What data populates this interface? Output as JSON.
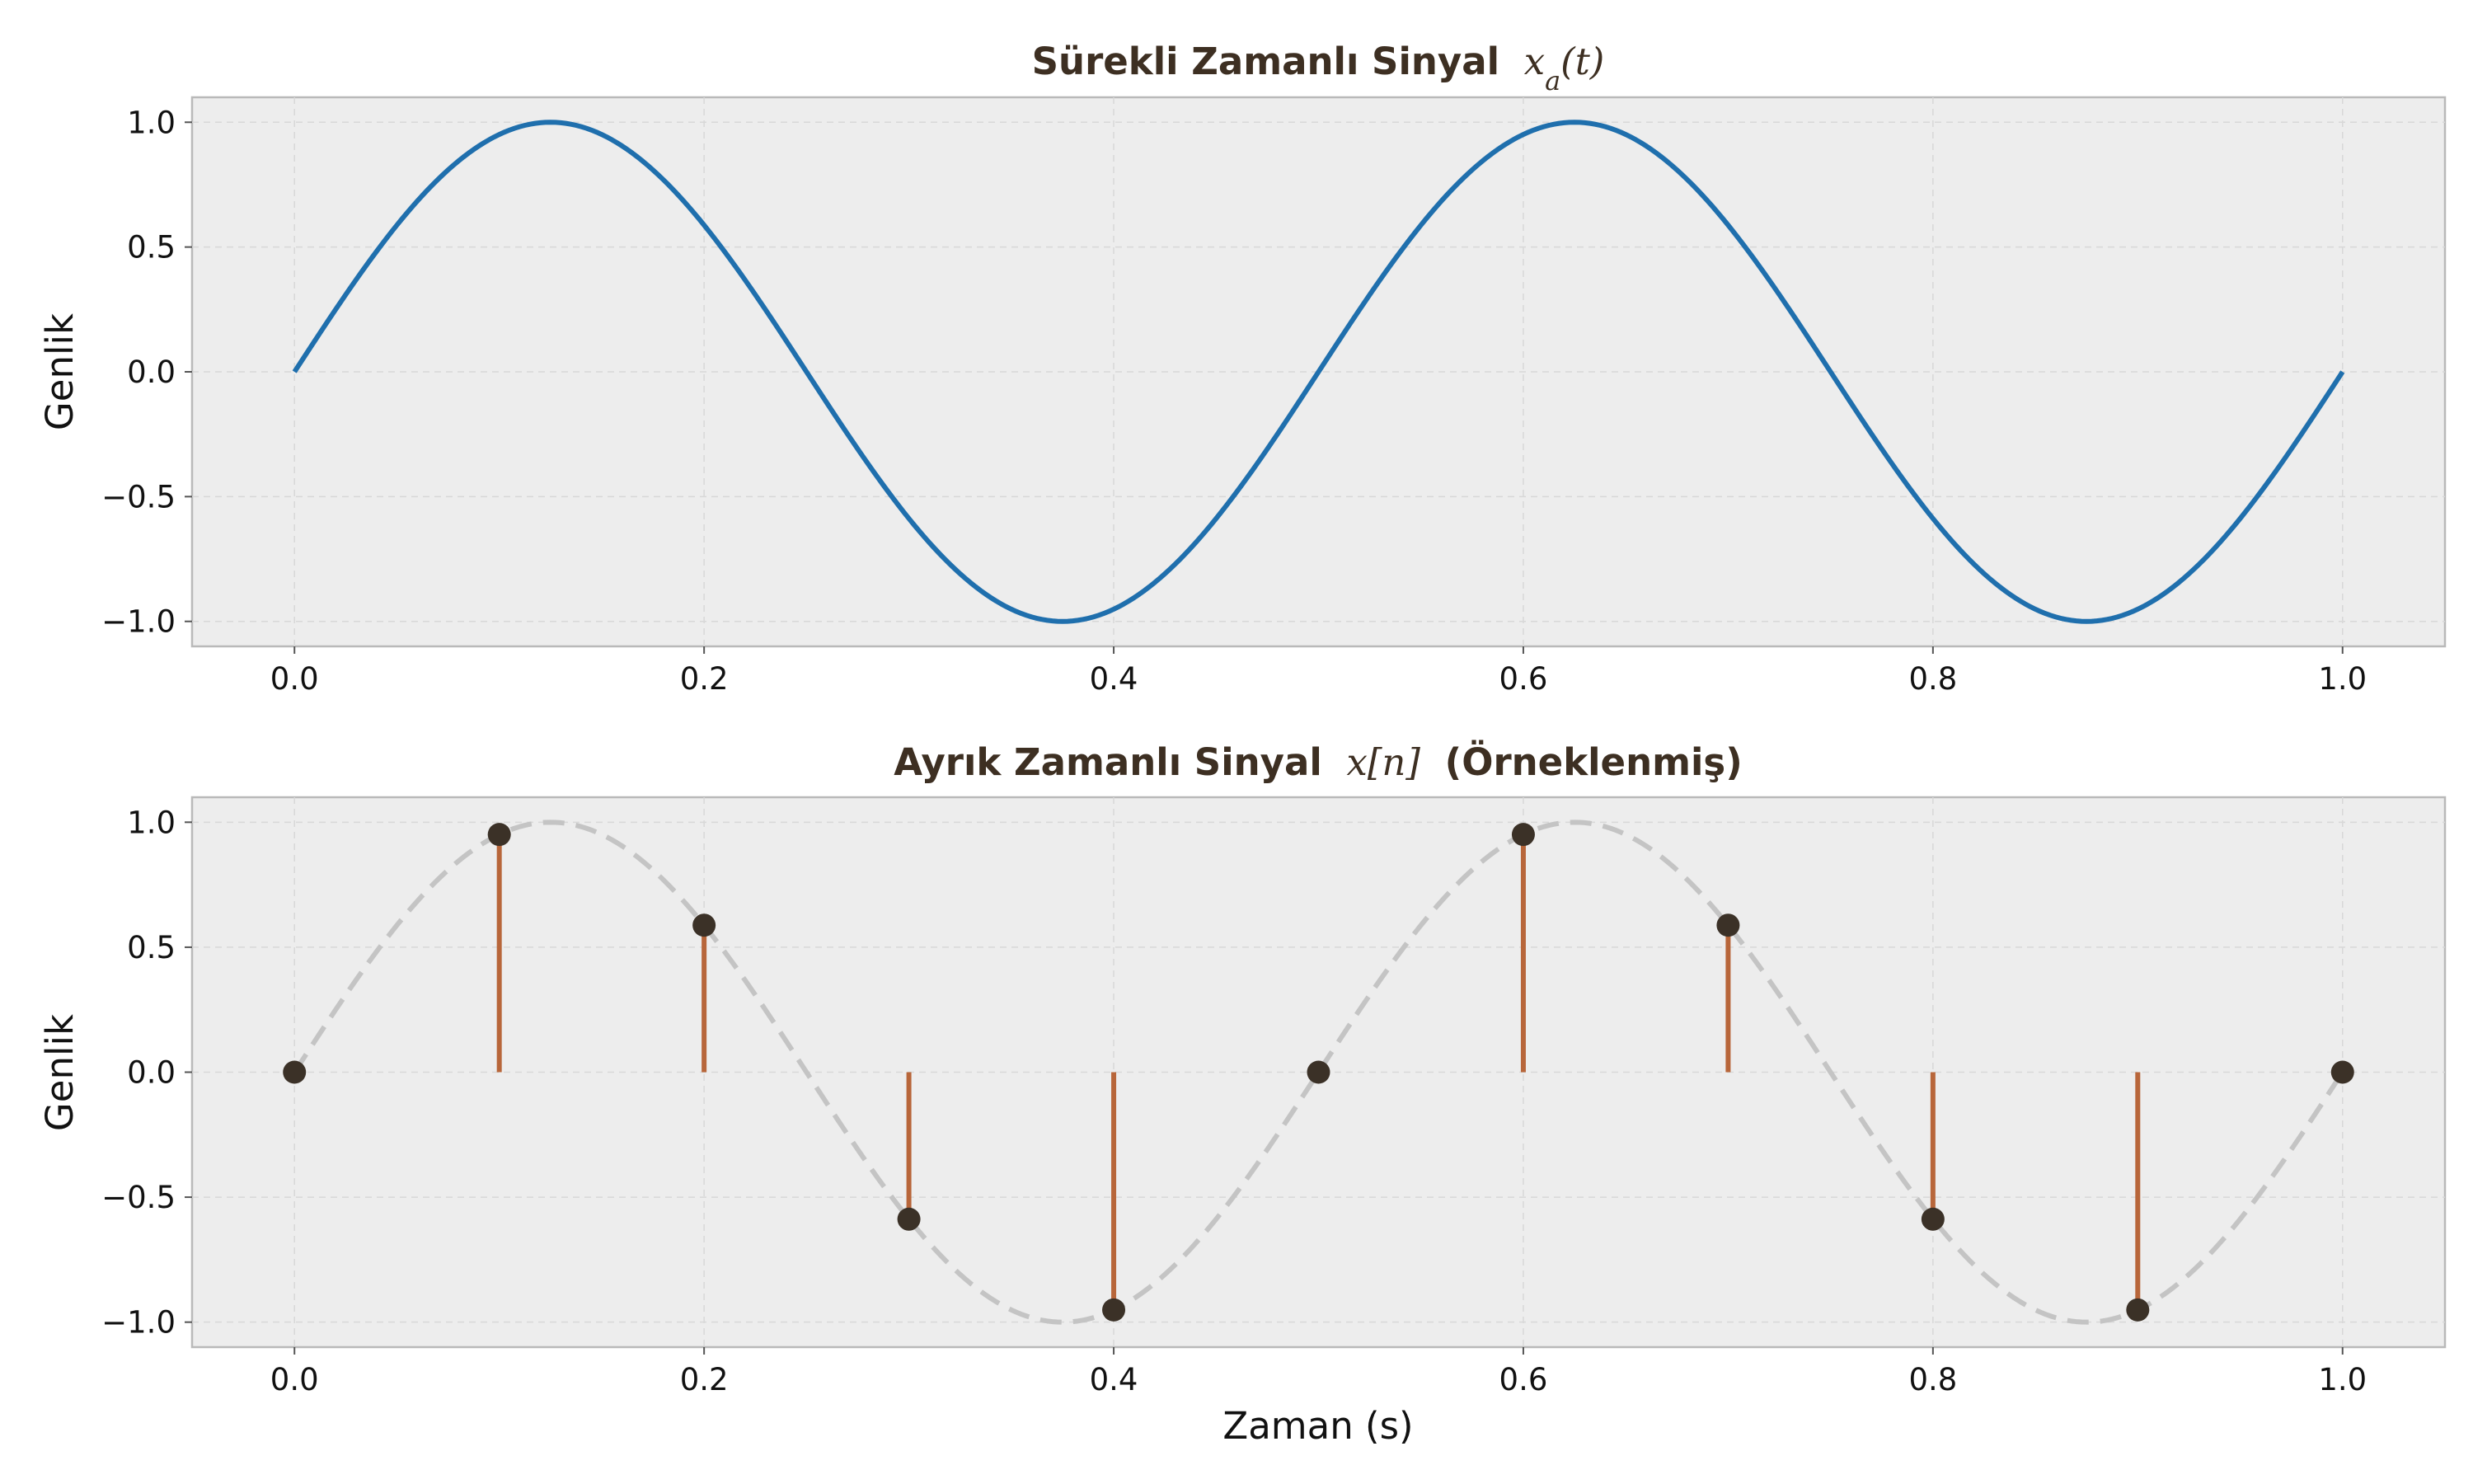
{
  "chart_data": [
    {
      "type": "line",
      "title": "Sürekli Zamanlı Sinyal",
      "title_math": "x_a(t)",
      "xlabel": "",
      "ylabel": "Genlik",
      "xlim": [
        -0.05,
        1.05
      ],
      "ylim": [
        -1.1,
        1.1
      ],
      "xticks": [
        0.0,
        0.2,
        0.4,
        0.6,
        0.8,
        1.0
      ],
      "xtick_labels": [
        "0.0",
        "0.2",
        "0.4",
        "0.6",
        "0.8",
        "1.0"
      ],
      "yticks": [
        1.0,
        0.5,
        0.0,
        -0.5,
        -1.0
      ],
      "ytick_labels": [
        "1.0",
        "0.5",
        "0.0",
        "−0.5",
        "−1.0"
      ],
      "grid": true,
      "series": [
        {
          "function": "sin(2*pi*2*t)",
          "frequency_hz": 2,
          "amplitude": 1,
          "t_range": [
            0,
            1
          ],
          "color": "#1f6fad"
        }
      ]
    },
    {
      "type": "stem",
      "title": "Ayrık Zamanlı Sinyal",
      "title_math": "x[n]",
      "title_suffix": "(Örneklenmiş)",
      "xlabel": "Zaman (s)",
      "ylabel": "Genlik",
      "xlim": [
        -0.05,
        1.05
      ],
      "ylim": [
        -1.1,
        1.1
      ],
      "xticks": [
        0.0,
        0.2,
        0.4,
        0.6,
        0.8,
        1.0
      ],
      "xtick_labels": [
        "0.0",
        "0.2",
        "0.4",
        "0.6",
        "0.8",
        "1.0"
      ],
      "yticks": [
        1.0,
        0.5,
        0.0,
        -0.5,
        -1.0
      ],
      "ytick_labels": [
        "1.0",
        "0.5",
        "0.0",
        "−0.5",
        "−1.0"
      ],
      "grid": true,
      "series": [
        {
          "kind": "reference-dashed",
          "function": "sin(2*pi*2*t)",
          "frequency_hz": 2,
          "t_range": [
            0,
            1
          ],
          "color": "#c4c4c4"
        },
        {
          "kind": "stems",
          "x": [
            0.0,
            0.1,
            0.2,
            0.3,
            0.4,
            0.5,
            0.6,
            0.7,
            0.8,
            0.9,
            1.0
          ],
          "y": [
            0.0,
            0.951,
            0.588,
            -0.588,
            -0.951,
            0.0,
            0.951,
            0.588,
            -0.588,
            -0.951,
            0.0
          ],
          "stem_color": "#b8663a",
          "marker_color": "#3b3127"
        }
      ]
    }
  ]
}
